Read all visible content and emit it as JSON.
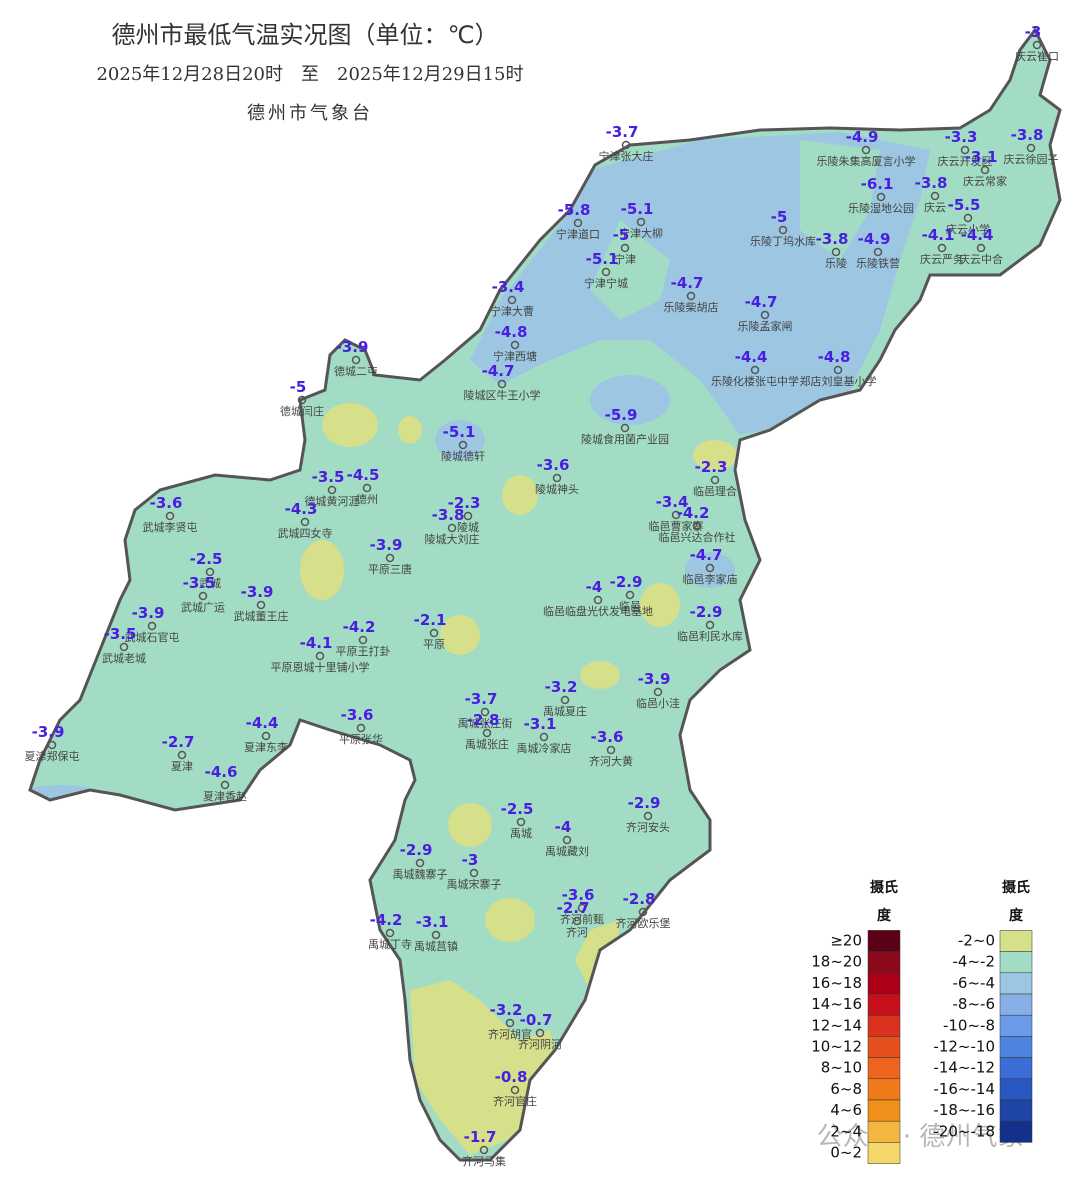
{
  "header": {
    "title": "德州市最低气温实况图（单位：℃）",
    "subtitle": "2025年12月28日20时　至　2025年12月29日15时",
    "source": "德州市气象台"
  },
  "stations": [
    {
      "name": "庆云崔口",
      "value": -3
    },
    {
      "name": "宁津张大庄",
      "value": -3.7
    },
    {
      "name": "乐陵朱集高厦言小学",
      "value": -4.9
    },
    {
      "name": "庆云开发区",
      "value": -3.3
    },
    {
      "name": "庆云徐园子",
      "value": -3.8
    },
    {
      "name": "庆云常家",
      "value": -3.1
    },
    {
      "name": "乐陵湿地公园",
      "value": -6.1
    },
    {
      "name": "庆云",
      "value": -3.8
    },
    {
      "name": "宁津道口",
      "value": -5.8
    },
    {
      "name": "宁津大柳",
      "value": -5.1
    },
    {
      "name": "乐陵丁坞水库",
      "value": -5
    },
    {
      "name": "庆云小学",
      "value": -5.5
    },
    {
      "name": "乐陵",
      "value": -3.8
    },
    {
      "name": "乐陵铁营",
      "value": -4.9
    },
    {
      "name": "庆云严务",
      "value": -4.1
    },
    {
      "name": "庆云中合",
      "value": -4.4
    },
    {
      "name": "宁津",
      "value": -5
    },
    {
      "name": "宁津宁城",
      "value": -5.1
    },
    {
      "name": "乐陵柴胡店",
      "value": -4.7
    },
    {
      "name": "乐陵孟家闸",
      "value": -4.7
    },
    {
      "name": "宁津大曹",
      "value": -3.4
    },
    {
      "name": "宁津西塘",
      "value": -4.8
    },
    {
      "name": "乐陵化楼张屯中学",
      "value": -4.4
    },
    {
      "name": "郑店刘皇基小学",
      "value": -4.8
    },
    {
      "name": "德城二屯",
      "value": -3.9
    },
    {
      "name": "德城闫庄",
      "value": -5
    },
    {
      "name": "陵城区牛王小学",
      "value": -4.7
    },
    {
      "name": "陵城食用菌产业园",
      "value": -5.9
    },
    {
      "name": "陵城德轩",
      "value": -5.1
    },
    {
      "name": "陵城神头",
      "value": -3.6
    },
    {
      "name": "临邑理合",
      "value": -2.3
    },
    {
      "name": "德州",
      "value": -4.5
    },
    {
      "name": "德城黄河涯",
      "value": -3.5
    },
    {
      "name": "武城李贤屯",
      "value": -3.6
    },
    {
      "name": "武城四女寺",
      "value": -4.3
    },
    {
      "name": "陵城",
      "value": -2.3
    },
    {
      "name": "陵城大刘庄",
      "value": -3.8
    },
    {
      "name": "临邑曹家寨",
      "value": -3.4
    },
    {
      "name": "临邑兴达合作社",
      "value": -4.2
    },
    {
      "name": "平原三唐",
      "value": -3.9
    },
    {
      "name": "武城",
      "value": -2.5
    },
    {
      "name": "武城广运",
      "value": -3.5
    },
    {
      "name": "临邑李家庙",
      "value": -4.7
    },
    {
      "name": "武城董王庄",
      "value": -3.9
    },
    {
      "name": "临邑临盘光伏发电基地",
      "value": -4
    },
    {
      "name": "临邑",
      "value": -2.9
    },
    {
      "name": "临邑利民水库",
      "value": -2.9
    },
    {
      "name": "武城石官屯",
      "value": -3.9
    },
    {
      "name": "武城老城",
      "value": -3.5
    },
    {
      "name": "平原",
      "value": -2.1
    },
    {
      "name": "平原王打卦",
      "value": -4.2
    },
    {
      "name": "平原恩城十里铺小学",
      "value": -4.1
    },
    {
      "name": "禹城夏庄",
      "value": -3.2
    },
    {
      "name": "临邑小洼",
      "value": -3.9
    },
    {
      "name": "禹城张庄街",
      "value": -3.7
    },
    {
      "name": "禹城张庄",
      "value": -2.8
    },
    {
      "name": "禹城冷家店",
      "value": -3.1
    },
    {
      "name": "齐河大黄",
      "value": -3.6
    },
    {
      "name": "平原张华",
      "value": -3.6
    },
    {
      "name": "夏津东李",
      "value": -4.4
    },
    {
      "name": "夏津",
      "value": -2.7
    },
    {
      "name": "夏津香赵",
      "value": -4.6
    },
    {
      "name": "夏津郑保屯",
      "value": -3.9
    },
    {
      "name": "齐河安头",
      "value": -2.9
    },
    {
      "name": "禹城",
      "value": -2.5
    },
    {
      "name": "禹城藏刘",
      "value": -4
    },
    {
      "name": "禹城魏寨子",
      "value": -2.9
    },
    {
      "name": "禹城宋寨子",
      "value": -3
    },
    {
      "name": "齐河前甄",
      "value": -3.6
    },
    {
      "name": "齐河",
      "value": -2.7
    },
    {
      "name": "齐河欧乐堡",
      "value": -2.8
    },
    {
      "name": "禹城丁寺",
      "value": -4.2
    },
    {
      "name": "禹城莒镇",
      "value": -3.1
    },
    {
      "name": "齐河胡官",
      "value": -3.2
    },
    {
      "name": "齐河阴河",
      "value": -0.7
    },
    {
      "name": "齐河官庄",
      "value": -0.8
    },
    {
      "name": "齐河马集",
      "value": -1.7
    }
  ],
  "legend": {
    "title": "摄氏度",
    "warm": [
      {
        "label": "≥20",
        "color": "#5c0015"
      },
      {
        "label": "18~20",
        "color": "#8a0a1c"
      },
      {
        "label": "16~18",
        "color": "#ad0017"
      },
      {
        "label": "14~16",
        "color": "#c8101c"
      },
      {
        "label": "12~14",
        "color": "#da321e"
      },
      {
        "label": "10~12",
        "color": "#e6501e"
      },
      {
        "label": "8~10",
        "color": "#ee641c"
      },
      {
        "label": "6~8",
        "color": "#f07a1a"
      },
      {
        "label": "4~6",
        "color": "#f0901a"
      },
      {
        "label": "2~4",
        "color": "#f4b63e"
      },
      {
        "label": "0~2",
        "color": "#f5d86c"
      }
    ],
    "cold": [
      {
        "label": "-2~0",
        "color": "#d6df8a"
      },
      {
        "label": "-4~-2",
        "color": "#a2dcc4"
      },
      {
        "label": "-6~-4",
        "color": "#9cc6e2"
      },
      {
        "label": "-8~-6",
        "color": "#88b0e8"
      },
      {
        "label": "-10~-8",
        "color": "#6a9ae8"
      },
      {
        "label": "-12~-10",
        "color": "#4c84e0"
      },
      {
        "label": "-14~-12",
        "color": "#3a6ed6"
      },
      {
        "label": "-16~-14",
        "color": "#2a58c2"
      },
      {
        "label": "-18~-16",
        "color": "#1e44a6"
      },
      {
        "label": "-20~-18",
        "color": "#14308a"
      }
    ]
  },
  "watermark": "公众号 · 德州气象"
}
